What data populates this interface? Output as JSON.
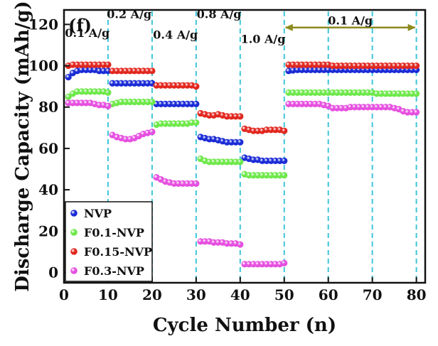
{
  "chart_data": {
    "type": "scatter",
    "panel_label": "(f)",
    "xlabel": "Cycle Number (n)",
    "ylabel": "Discharge Capacity (mAh/g)",
    "xlim": [
      0,
      82
    ],
    "ylim": [
      -5,
      127
    ],
    "xticks": [
      0,
      10,
      20,
      30,
      40,
      50,
      60,
      70,
      80
    ],
    "yticks": [
      0,
      20,
      40,
      60,
      80,
      100,
      120
    ],
    "grid": false,
    "legend_position": "bottom-left",
    "rate_boundaries": [
      10,
      20,
      30,
      40,
      50,
      60,
      70,
      80
    ],
    "rate_labels": [
      {
        "text": "0.1 A/g",
        "x": 5.3,
        "y": 114
      },
      {
        "text": "0.2 A/g",
        "x": 14.8,
        "y": 123
      },
      {
        "text": "0.4 A/g",
        "x": 25.3,
        "y": 113
      },
      {
        "text": "0.8 A/g",
        "x": 35.2,
        "y": 123
      },
      {
        "text": "1.0 A/g",
        "x": 45.2,
        "y": 111
      },
      {
        "text": "0.1 A/g",
        "x": 65,
        "y": 120
      }
    ],
    "bracket": {
      "x1": 50,
      "x2": 80,
      "y": 118.5
    },
    "series": [
      {
        "name": "NVP",
        "color": "#1a2bd6",
        "values": [
          94.5,
          96.5,
          97.5,
          98,
          98,
          98,
          98,
          97.5,
          97.5,
          97.5,
          91.5,
          91.5,
          91.5,
          91.5,
          91.5,
          91.5,
          91.5,
          91.5,
          91.5,
          91.5,
          81.5,
          81.5,
          81.5,
          81.5,
          81.5,
          81.5,
          81.5,
          81.5,
          81.5,
          81.5,
          65.5,
          65,
          64.5,
          64.5,
          64,
          63.5,
          63,
          63,
          63,
          63,
          55.5,
          55,
          54.5,
          54.5,
          54,
          54,
          54,
          54,
          54,
          54,
          97.5,
          97.8,
          98,
          98,
          98,
          98,
          98,
          98,
          98,
          98,
          98,
          98,
          98,
          98,
          98,
          98,
          98,
          98,
          98,
          98,
          98,
          98,
          98,
          98,
          98,
          98,
          98,
          98,
          98,
          98
        ]
      },
      {
        "name": "F0.1-NVP",
        "color": "#6ee84a",
        "values": [
          85,
          86.5,
          87.5,
          87.5,
          87.5,
          87.5,
          87.5,
          87.5,
          87.5,
          87,
          81.5,
          82,
          82.5,
          82.5,
          82.5,
          82.5,
          82.5,
          82.5,
          82.5,
          82.5,
          71.5,
          72,
          72,
          72,
          72,
          72,
          72,
          72,
          72.5,
          72.5,
          55,
          54,
          53.5,
          53.5,
          53.5,
          53.5,
          53.5,
          53.5,
          53.5,
          53.5,
          47.5,
          47,
          47,
          47,
          47,
          47,
          47,
          47,
          47,
          47,
          87,
          87,
          87,
          87,
          87,
          87,
          87,
          87,
          87,
          87,
          87,
          87,
          87,
          87,
          87,
          87,
          87,
          87,
          87,
          87,
          86.5,
          86.5,
          86.5,
          86.5,
          86.5,
          86.5,
          86.5,
          86.5,
          86.5,
          86.5
        ]
      },
      {
        "name": "F0.15-NVP",
        "color": "#e2261e",
        "values": [
          100,
          100.5,
          100.5,
          100.5,
          100.5,
          100.5,
          100.5,
          100.5,
          100.5,
          100.5,
          97.5,
          97.5,
          97.5,
          97.5,
          97.5,
          97.5,
          97.5,
          97.5,
          97.5,
          97.5,
          90.5,
          90.5,
          90.5,
          90.5,
          90.5,
          90.5,
          90.5,
          90.5,
          90.5,
          90,
          77,
          76.5,
          76,
          76,
          76.5,
          76,
          75.5,
          75.5,
          75.5,
          75.5,
          69.5,
          69,
          68.5,
          68.5,
          68.5,
          69,
          69,
          69,
          69,
          68.5,
          100.5,
          100.5,
          100.5,
          100.5,
          100.5,
          100.5,
          100.5,
          100.5,
          100.5,
          100.5,
          100,
          100,
          100,
          100,
          100,
          100,
          100,
          100,
          100,
          100,
          100,
          100,
          100,
          100,
          100,
          100,
          100,
          100,
          100,
          100
        ]
      },
      {
        "name": "F0.3-NVP",
        "color": "#e64fe0",
        "values": [
          82,
          82,
          82,
          82,
          82,
          82,
          81.5,
          81,
          81,
          80.5,
          66.5,
          65.5,
          65,
          64.5,
          64.5,
          65,
          66,
          67,
          67.5,
          68,
          46,
          45,
          44,
          43.5,
          43,
          43,
          43,
          43,
          43,
          43,
          15,
          15,
          15,
          14.5,
          14.5,
          14.5,
          14,
          14,
          14,
          13.5,
          4,
          4,
          4,
          4,
          4,
          4,
          4,
          4,
          4,
          4.5,
          81.5,
          81.5,
          81.5,
          81.5,
          81.5,
          81.5,
          81.5,
          81.5,
          81,
          80.5,
          79.5,
          79.5,
          79.5,
          79.5,
          80,
          80,
          80,
          80,
          80,
          80,
          80,
          80,
          80,
          80,
          79.5,
          79,
          78,
          77.5,
          77.5,
          77.5
        ]
      }
    ]
  },
  "colors": {
    "boundary": "#3ec6d8",
    "bracket": "#8c8a1e",
    "axis": "#111111"
  }
}
